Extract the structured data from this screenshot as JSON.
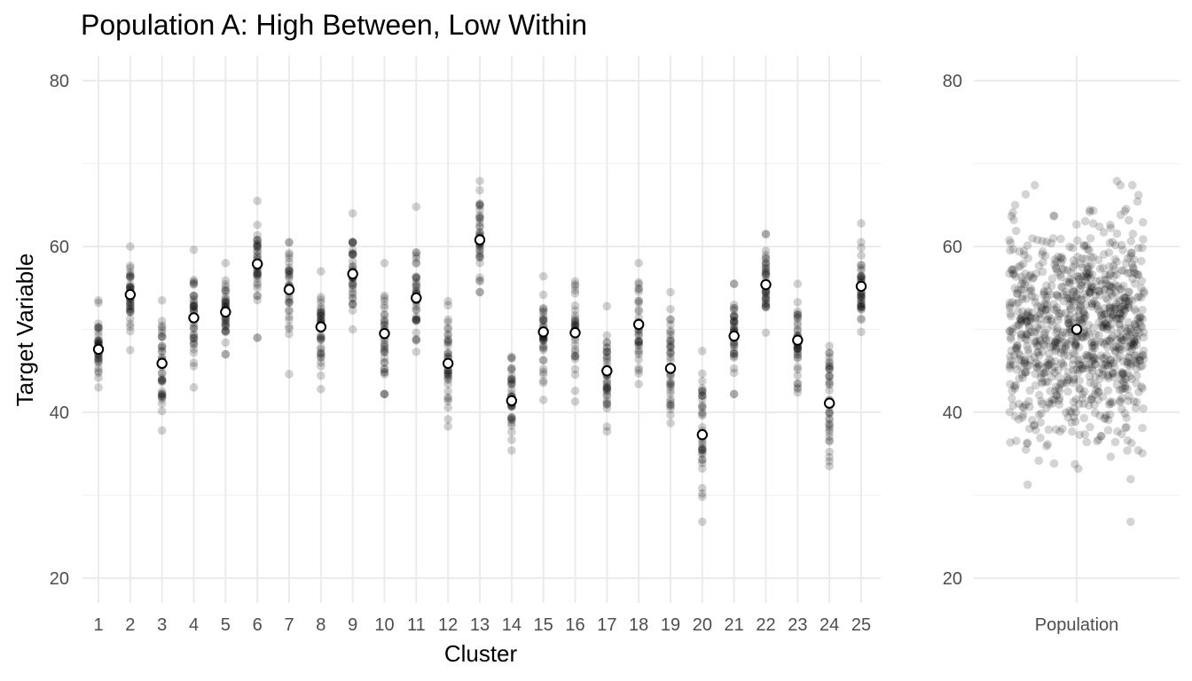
{
  "chart_data": [
    {
      "type": "scatter",
      "title": "Population A: High Between, Low Within",
      "xlabel": "Cluster",
      "ylabel": "Target Variable",
      "categories": [
        "1",
        "2",
        "3",
        "4",
        "5",
        "6",
        "7",
        "8",
        "9",
        "10",
        "11",
        "12",
        "13",
        "14",
        "15",
        "16",
        "17",
        "18",
        "19",
        "20",
        "21",
        "22",
        "23",
        "24",
        "25"
      ],
      "ylim": [
        17,
        83
      ],
      "yticks": [
        20,
        40,
        60,
        80
      ],
      "grid": true,
      "legend": "none",
      "point_color": "#000000",
      "point_opacity": 0.18,
      "mean_marker_color": "#ffffff",
      "series": [
        {
          "means": [
            47.6,
            54.2,
            45.9,
            51.4,
            52.1,
            57.9,
            54.8,
            50.3,
            56.7,
            49.5,
            53.8,
            45.9,
            60.8,
            41.4,
            49.7,
            49.6,
            45.0,
            50.6,
            45.3,
            37.3,
            49.2,
            55.4,
            48.7,
            41.1,
            55.2
          ],
          "ranges": [
            [
              43,
              53.5
            ],
            [
              47.5,
              60
            ],
            [
              37.8,
              53.5
            ],
            [
              43,
              59.6
            ],
            [
              47,
              58
            ],
            [
              49,
              65.5
            ],
            [
              44.6,
              60.5
            ],
            [
              42.8,
              57
            ],
            [
              50,
              64
            ],
            [
              42.2,
              58
            ],
            [
              47.3,
              64.8
            ],
            [
              38.3,
              53.4
            ],
            [
              54.5,
              67.9
            ],
            [
              35.4,
              46.7
            ],
            [
              41.5,
              56.4
            ],
            [
              41.3,
              55.8
            ],
            [
              37.7,
              52.8
            ],
            [
              43.4,
              58
            ],
            [
              38.7,
              54.5
            ],
            [
              26.8,
              47.4
            ],
            [
              42.2,
              55.5
            ],
            [
              49.6,
              61.5
            ],
            [
              42.4,
              55.5
            ],
            [
              33.5,
              48
            ],
            [
              49.7,
              62.8
            ]
          ]
        }
      ]
    },
    {
      "type": "scatter",
      "categories": [
        "Population"
      ],
      "ylim": [
        17,
        83
      ],
      "yticks": [
        20,
        40,
        60,
        80
      ],
      "grid": true,
      "legend": "none",
      "series": [
        {
          "mean": 50.0,
          "range": [
            26.8,
            67.9
          ]
        }
      ]
    }
  ]
}
